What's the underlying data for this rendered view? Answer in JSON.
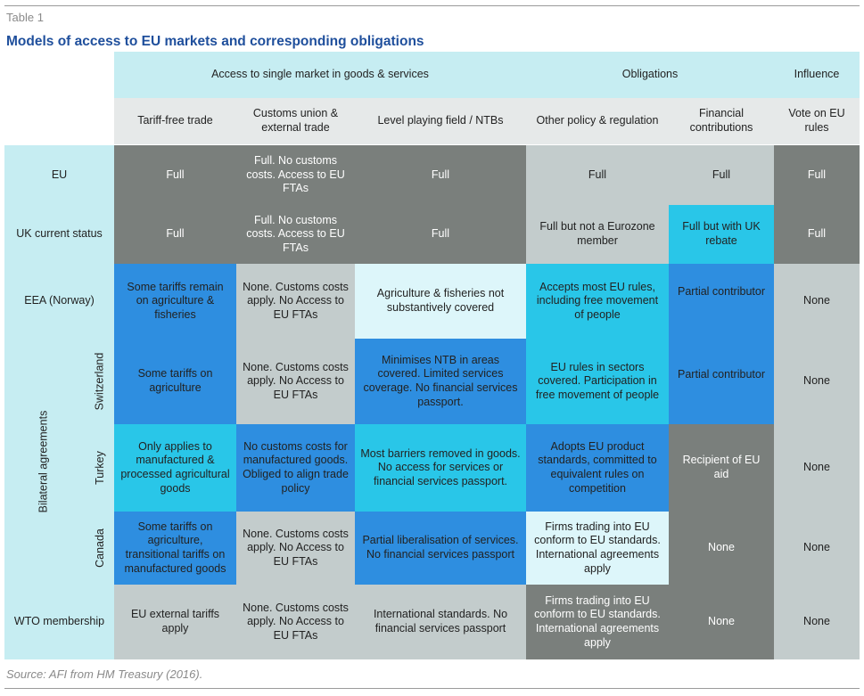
{
  "table_label": "Table 1",
  "title": "Models of access to EU markets and corresponding obligations",
  "source": "Source: AFI from HM Treasury (2016).",
  "groups": {
    "access": "Access to single market in goods & services",
    "obligations": "Obligations",
    "influence": "Influence"
  },
  "columns": {
    "tariff": "Tariff-free trade",
    "customs": "Customs union & external trade",
    "lpf": "Level playing field / NTBs",
    "policy": "Other policy & regulation",
    "financial": "Financial contributions",
    "vote": "Vote on EU rules"
  },
  "rows": {
    "eu": "EU",
    "uk": "UK current status",
    "eea": "EEA (Norway)",
    "bilateral": "Bilateral agreements",
    "switzerland": "Switzerland",
    "turkey": "Turkey",
    "canada": "Canada",
    "wto": "WTO membership"
  },
  "cells": {
    "eu": {
      "tariff": "Full",
      "customs": "Full. No customs costs. Access to EU FTAs",
      "lpf": "Full",
      "policy": "Full",
      "financial": "Full",
      "vote": "Full"
    },
    "uk": {
      "tariff": "Full",
      "customs": "Full. No customs costs. Access to EU FTAs",
      "lpf": "Full",
      "policy": "Full but not a Eurozone member",
      "financial": "Full but with UK rebate",
      "vote": "Full"
    },
    "eea": {
      "tariff": "Some tariffs remain on agriculture & fisheries",
      "customs": "None. Customs costs apply. No Access to EU FTAs",
      "lpf": "Agriculture & fisheries not substantively covered",
      "policy": "Accepts most EU rules, including free movement of people",
      "financial": "Partial contributor",
      "vote": "None"
    },
    "switzerland": {
      "tariff": "Some tariffs on agriculture",
      "customs": "None. Customs costs apply. No Access to EU FTAs",
      "lpf": "Minimises NTB in areas covered. Limited services coverage. No financial services passport.",
      "policy": "EU rules in sectors covered. Participation in free movement of people",
      "financial": "Partial contributor",
      "vote": "None"
    },
    "turkey": {
      "tariff": "Only applies to manufactured & processed agricultural goods",
      "customs": "No customs costs for manufactured goods. Obliged to align trade policy",
      "lpf": "Most barriers removed in goods. No access for services or financial services passport.",
      "policy": "Adopts EU product standards, committed to equivalent rules on competition",
      "financial": "Recipient of EU aid",
      "vote": "None"
    },
    "canada": {
      "tariff": "Some tariffs on agriculture, transitional tariffs on manufactured goods",
      "customs": "None. Customs costs apply. No Access to EU FTAs",
      "lpf": "Partial liberalisation of services. No financial services passport",
      "policy": "Firms trading into EU conform to EU standards. International agreements apply",
      "financial": "None",
      "vote": "None"
    },
    "wto": {
      "tariff": "EU external tariffs apply",
      "customs": "None. Customs costs apply. No Access to EU FTAs",
      "lpf": "International standards. No financial services passport",
      "policy": "Firms trading into EU conform to EU standards. International agreements apply",
      "vote": "None"
    }
  },
  "colors": {
    "teal_light": "#c6edf2",
    "grey_dark": "#7a7f7c",
    "grey_light": "#c3cccc",
    "blue_mid": "#2e8ee0",
    "cyan": "#29c6e8",
    "pale_cyan": "#ddf6fa",
    "title_blue": "#1f4f9c"
  }
}
